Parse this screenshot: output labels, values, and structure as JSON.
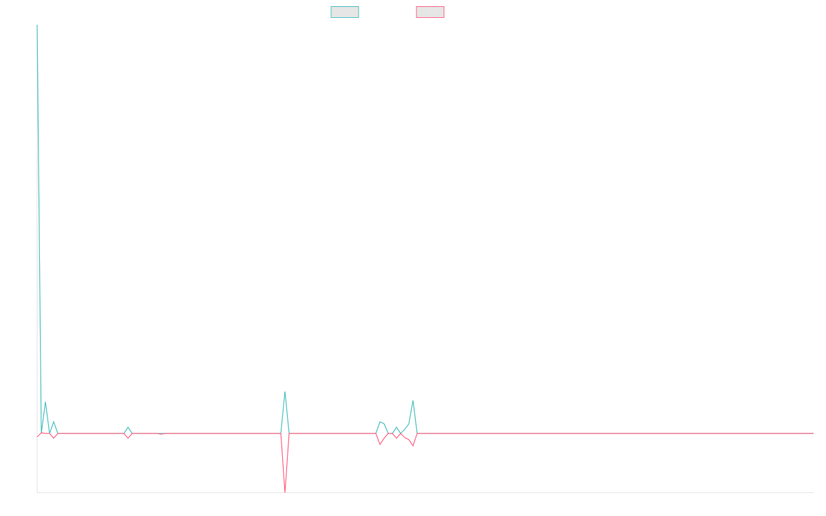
{
  "chart_data": {
    "type": "line",
    "ylim": [
      -8.6,
      59.4
    ],
    "series": [
      {
        "color": "#4bc0c0",
        "values": [
          59.4,
          0,
          4.6,
          0,
          1.7,
          0,
          0,
          0,
          0,
          0,
          0,
          0,
          0,
          0,
          0,
          0,
          0,
          0,
          0,
          0,
          0,
          0,
          0.9,
          0,
          0,
          0,
          0,
          0,
          0,
          0,
          0,
          0,
          0,
          0,
          0,
          0,
          0,
          0,
          0,
          0,
          0,
          0,
          0,
          0,
          0,
          0,
          0,
          0,
          0,
          0,
          0,
          0,
          0,
          0,
          0,
          0,
          0,
          0,
          0,
          0,
          6.1,
          0,
          0,
          0,
          0,
          0,
          0,
          0,
          0,
          0,
          0,
          0,
          0,
          0,
          0,
          0,
          0,
          0,
          0,
          0,
          0,
          0,
          0,
          1.7,
          1.4,
          0,
          0,
          0.9,
          0,
          0.6,
          1.4,
          4.8,
          0,
          0,
          0,
          0,
          0,
          0,
          0,
          0,
          0,
          0,
          0,
          0,
          0,
          0,
          0,
          0,
          0,
          0,
          0,
          0,
          0,
          0,
          0,
          0,
          0,
          0,
          0,
          0,
          0,
          0,
          0,
          0,
          0,
          0,
          0,
          0,
          0,
          0,
          0,
          0,
          0,
          0,
          0,
          0,
          0,
          0,
          0,
          0,
          0,
          0,
          0,
          0,
          0,
          0,
          0,
          0,
          0,
          0,
          0,
          0,
          0,
          0,
          0,
          0,
          0,
          0,
          0,
          0,
          0,
          0,
          0,
          0,
          0,
          0,
          0,
          0,
          0,
          0,
          0,
          0,
          0,
          0,
          0,
          0,
          0,
          0,
          0,
          0,
          0,
          0,
          0,
          0,
          0,
          0,
          0,
          0,
          0
        ]
      },
      {
        "color": "#ff6384",
        "values": [
          -0.5,
          0.1,
          0,
          0,
          -0.7,
          0,
          0,
          0,
          0,
          0,
          0,
          0,
          0,
          0,
          0,
          0,
          0,
          0,
          0,
          0,
          0,
          0,
          -0.7,
          0,
          0,
          0,
          0,
          0,
          0,
          0,
          -0.1,
          0,
          0,
          0,
          0,
          0,
          0,
          0,
          0,
          0,
          0,
          0,
          0,
          0,
          0,
          0,
          0,
          0,
          0,
          0,
          0,
          0,
          0,
          0,
          0,
          0,
          0,
          0,
          0,
          0,
          -8.6,
          0,
          0,
          0,
          0,
          0,
          0,
          0,
          0,
          0,
          0,
          0,
          0,
          0,
          0,
          0,
          0,
          0,
          0,
          0,
          0,
          0,
          0,
          -1.6,
          -0.7,
          0,
          0,
          -0.7,
          0,
          -0.6,
          -0.9,
          -1.8,
          0,
          0,
          0,
          0,
          0,
          0,
          0,
          0,
          0,
          0,
          0,
          0,
          0,
          0,
          0,
          0,
          0,
          0,
          0,
          0,
          0,
          0,
          0,
          0,
          0,
          0,
          0,
          0,
          0,
          0,
          0,
          0,
          0,
          0,
          0,
          0,
          0,
          0,
          0,
          0,
          0,
          0,
          0,
          0,
          0,
          0,
          0,
          0,
          0,
          0,
          0,
          0,
          0,
          0,
          0,
          0,
          0,
          0,
          0,
          0,
          0,
          0,
          0,
          0,
          0,
          0,
          0,
          0,
          0,
          0,
          0,
          0,
          0,
          0,
          0,
          0,
          0,
          0,
          0,
          0,
          0,
          0,
          0,
          0,
          0,
          0,
          0,
          0,
          0,
          0,
          0,
          0,
          0,
          0,
          0,
          0,
          0
        ]
      }
    ]
  }
}
